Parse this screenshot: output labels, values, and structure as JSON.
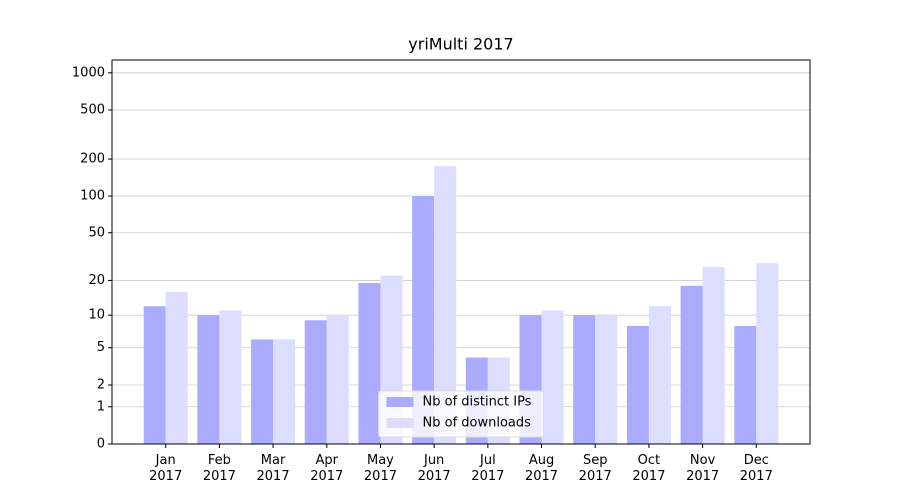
{
  "chart_data": {
    "type": "bar",
    "title": "yriMulti 2017",
    "categories": [
      "Jan\n2017",
      "Feb\n2017",
      "Mar\n2017",
      "Apr\n2017",
      "May\n2017",
      "Jun\n2017",
      "Jul\n2017",
      "Aug\n2017",
      "Sep\n2017",
      "Oct\n2017",
      "Nov\n2017",
      "Dec\n2017"
    ],
    "series": [
      {
        "name": "Nb of distinct IPs",
        "color": "#aaaaff",
        "values": [
          12,
          10,
          6,
          9,
          19,
          100,
          4,
          10,
          10,
          8,
          18,
          8
        ]
      },
      {
        "name": "Nb of downloads",
        "color": "#ddddff",
        "values": [
          16,
          11,
          6,
          10,
          22,
          175,
          4,
          11,
          10,
          12,
          26,
          28
        ]
      }
    ],
    "yscale": "log1p",
    "ylim": [
      0,
      1270
    ],
    "yticks": [
      0,
      1,
      2,
      5,
      10,
      20,
      50,
      100,
      200,
      500,
      1000
    ],
    "grid": true,
    "legend": "lower center"
  }
}
